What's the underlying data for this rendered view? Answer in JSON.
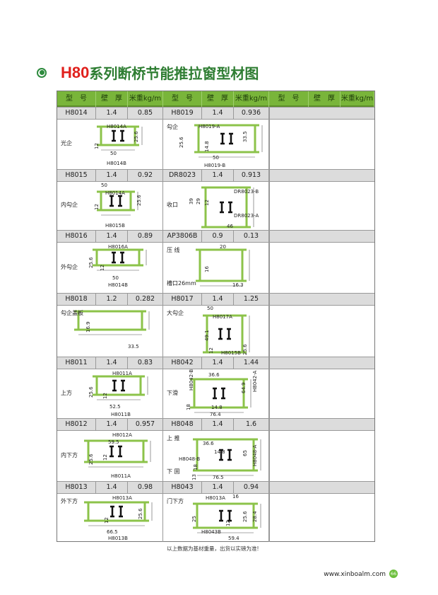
{
  "title": {
    "prefix": "H80",
    "text": "系列断桥节能推拉窗型材图"
  },
  "colors": {
    "header": "#79b53a",
    "profile": "#8cc34a",
    "title_green": "#2e7d32",
    "title_red": "#e0201c"
  },
  "table": {
    "headers": [
      "型　号",
      "壁　厚",
      "米重kg/m",
      "型　号",
      "壁　厚",
      "米重kg/m",
      "型　号",
      "壁　厚",
      "米重kg/m"
    ],
    "rows": [
      {
        "left": {
          "model": "H8014",
          "wall": "1.4",
          "weight": "0.85",
          "names": [
            "光企"
          ],
          "labels": [
            "H8014A",
            "12",
            "25.6",
            "50",
            "H8014B"
          ]
        },
        "right": {
          "model": "H8019",
          "wall": "1.4",
          "weight": "0.936",
          "names": [
            "勾企"
          ],
          "labels": [
            "H8019-A",
            "25.6",
            "14.8",
            "33.5",
            "50",
            "H8019-B"
          ]
        }
      },
      {
        "left": {
          "model": "H8015",
          "wall": "1.4",
          "weight": "0.92",
          "names": [
            "内勾企"
          ],
          "labels": [
            "50",
            "H8014A",
            "12",
            "25.6",
            "H8015B"
          ]
        },
        "right": {
          "model": "DR8023",
          "wall": "1.4",
          "weight": "0.913",
          "names": [
            "收口"
          ],
          "labels": [
            "39",
            "29",
            "12",
            "DR8023-B",
            "DR8023-A",
            "46"
          ]
        }
      },
      {
        "left": {
          "model": "H8016",
          "wall": "1.4",
          "weight": "0.89",
          "names": [
            "外勾企"
          ],
          "labels": [
            "H8016A",
            "25.6",
            "12",
            "50",
            "H8014B"
          ]
        },
        "right": {
          "model": "AP3806B",
          "wall": "0.9",
          "weight": "0.13",
          "names": [
            "压 线",
            "槽口26mm"
          ],
          "labels": [
            "20",
            "16",
            "16.3"
          ]
        }
      },
      {
        "left": {
          "model": "H8018",
          "wall": "1.2",
          "weight": "0.282",
          "names": [
            "勾企盖板"
          ],
          "labels": [
            "16.9",
            "33.5"
          ]
        },
        "right": {
          "model": "H8017",
          "wall": "1.4",
          "weight": "1.25",
          "names": [
            "大勾企"
          ],
          "labels": [
            "50",
            "H8017A",
            "49.1",
            "12",
            "25.6",
            "H8015B"
          ]
        }
      },
      {
        "left": {
          "model": "H8011",
          "wall": "1.4",
          "weight": "0.83",
          "names": [
            "上方"
          ],
          "labels": [
            "H8011A",
            "25.6",
            "12",
            "52.5",
            "H8011B"
          ]
        },
        "right": {
          "model": "H8042",
          "wall": "1.4",
          "weight": "1.44",
          "names": [
            "下滑"
          ],
          "labels": [
            "H8042-B",
            "36.6",
            "64.9",
            "H8042-A",
            "18",
            "14.8",
            "76.4"
          ]
        }
      },
      {
        "left": {
          "model": "H8012",
          "wall": "1.4",
          "weight": "0.957",
          "names": [
            "内下方"
          ],
          "labels": [
            "H8012A",
            "59.5",
            "25.6",
            "12",
            "H8011A"
          ]
        },
        "right": {
          "model": "H8048",
          "wall": "1.4",
          "weight": "1.6",
          "names": [
            "上 推",
            "下 固"
          ],
          "labels": [
            "36.6",
            "14.8",
            "H8048-B",
            "18",
            "13",
            "76.5",
            "65",
            "H8048-A"
          ]
        }
      },
      {
        "left": {
          "model": "H8013",
          "wall": "1.4",
          "weight": "0.98",
          "names": [
            "外下方"
          ],
          "labels": [
            "H8013A",
            "12",
            "25.6",
            "66.5",
            "H8013B"
          ]
        },
        "right": {
          "model": "H8043",
          "wall": "1.4",
          "weight": "0.94",
          "names": [
            "门下方"
          ],
          "labels": [
            "H8013A",
            "16",
            "25",
            "12",
            "25.6",
            "28.4",
            "H8043B",
            "59.4"
          ]
        }
      }
    ]
  },
  "note": "以上数据为基材重量，出货以实磅为准!",
  "footer": {
    "website": "www.xinboalm.com",
    "page": "66"
  }
}
